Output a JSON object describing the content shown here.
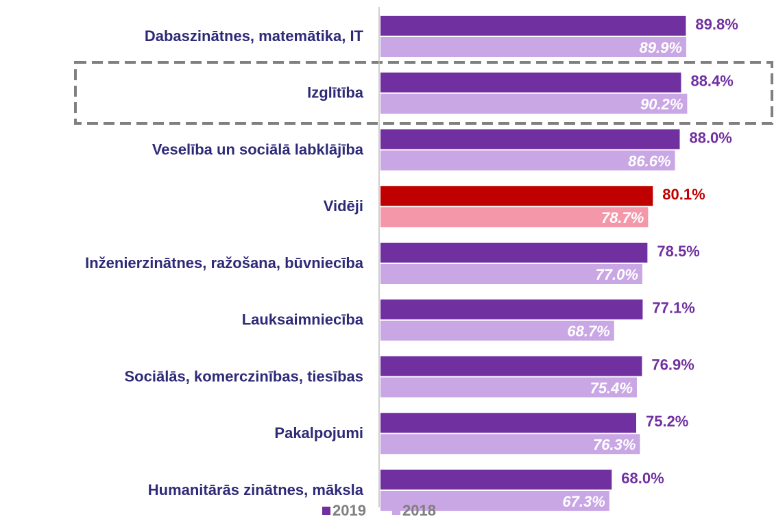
{
  "chart_data": {
    "type": "bar",
    "orientation": "horizontal",
    "categories": [
      "Dabaszinātnes, matemātika, IT",
      "Izglītība",
      "Veselība un sociālā labklājība",
      "Vidēji",
      "Inženierzinātnes, ražošana, būvniecība",
      "Lauksaimniecība",
      "Sociālās, komerczinības, tiesības",
      "Pakalpojumi",
      "Humanitārās zinātnes, māksla"
    ],
    "series": [
      {
        "name": "2019",
        "color": "#7030a0",
        "colors": [
          "#7030a0",
          "#7030a0",
          "#7030a0",
          "#c00000",
          "#7030a0",
          "#7030a0",
          "#7030a0",
          "#7030a0",
          "#7030a0"
        ],
        "values": [
          89.8,
          88.4,
          88.0,
          80.1,
          78.5,
          77.1,
          76.9,
          75.2,
          68.0
        ],
        "value_labels": [
          "89.8%",
          "88.4%",
          "88.0%",
          "80.1%",
          "78.5%",
          "77.1%",
          "76.9%",
          "75.2%",
          "68.0%"
        ]
      },
      {
        "name": "2018",
        "color": "#c9a6e4",
        "colors": [
          "#c9a6e4",
          "#c9a6e4",
          "#c9a6e4",
          "#f497a9",
          "#c9a6e4",
          "#c9a6e4",
          "#c9a6e4",
          "#c9a6e4",
          "#c9a6e4"
        ],
        "values": [
          89.9,
          90.2,
          86.6,
          78.7,
          77.0,
          68.7,
          75.4,
          76.3,
          67.3
        ],
        "value_labels": [
          "89.9%",
          "90.2%",
          "86.6%",
          "78.7%",
          "77.0%",
          "68.7%",
          "75.4%",
          "76.3%",
          "67.3%"
        ]
      }
    ],
    "xlim": [
      0,
      100
    ],
    "legend": "bottom"
  }
}
